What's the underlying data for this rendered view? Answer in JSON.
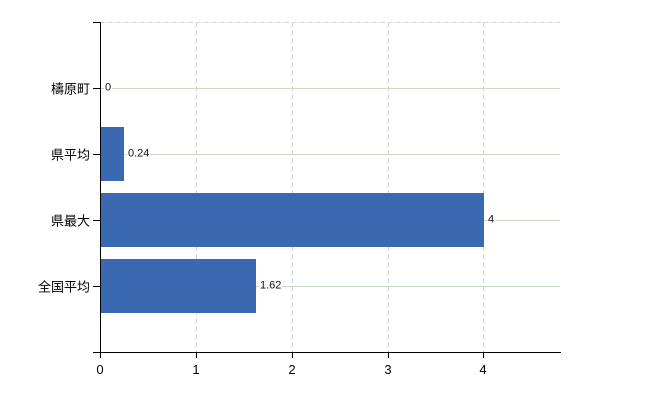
{
  "chart_data": {
    "type": "bar",
    "orientation": "horizontal",
    "title": "",
    "xlabel": "",
    "ylabel": "",
    "categories": [
      "檮原町",
      "県平均",
      "県最大",
      "全国平均"
    ],
    "values": [
      0,
      0.24,
      4,
      1.62
    ],
    "value_labels": [
      "0",
      "0.24",
      "4",
      "1.62"
    ],
    "x_ticks": [
      0,
      1,
      2,
      3,
      4
    ],
    "x_tick_labels": [
      "0",
      "1",
      "2",
      "3",
      "4"
    ],
    "xlim": [
      0,
      4.8
    ],
    "legend": "none",
    "grid": {
      "vertical": "dashed",
      "horizontal": "solid-at-category-centers",
      "top_border": "dashed"
    },
    "colors": {
      "bar": "#3b69b1",
      "axis": "#000000",
      "h_gridline": "#ccd8c6",
      "v_gridline": "#d6d6d6",
      "text": "#000000",
      "background": "#ffffff"
    }
  }
}
